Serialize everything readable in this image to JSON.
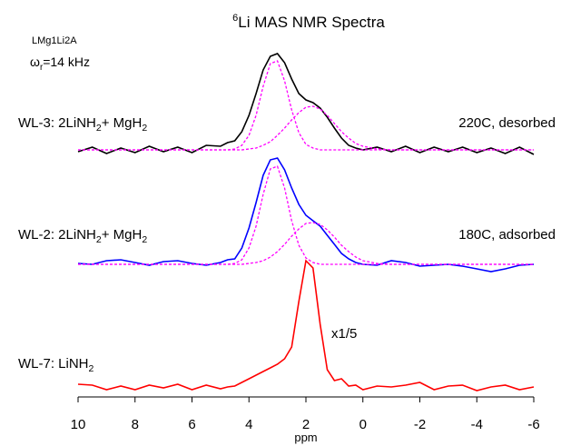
{
  "chart_data": {
    "type": "line",
    "title": "Li MAS NMR Spectra",
    "title_superscript": "6",
    "sample": "LMg1Li2A",
    "spin_rate": [
      "ω",
      "r",
      "=14 kHz"
    ],
    "xlabel": "ppm",
    "xlim": [
      10,
      -6
    ],
    "xticks": [
      10,
      8,
      6,
      4,
      2,
      0,
      -2,
      -4,
      -6
    ],
    "x": [
      10,
      9.5,
      9,
      8.5,
      8,
      7.5,
      7,
      6.5,
      6,
      5.5,
      5,
      4.75,
      4.5,
      4.25,
      4,
      3.75,
      3.5,
      3.25,
      3,
      2.75,
      2.5,
      2.25,
      2,
      1.75,
      1.5,
      1.25,
      1,
      0.75,
      0.5,
      0.25,
      0,
      -0.5,
      -1,
      -1.5,
      -2,
      -2.5,
      -3,
      -3.5,
      -4,
      -4.5,
      -5,
      -5.5,
      -6
    ],
    "series": [
      {
        "name": [
          "WL-3: 2LiNH",
          "2",
          "+ MgH",
          "2"
        ],
        "condition": "220C, desorbed",
        "color": "#000000",
        "values": [
          -2,
          3,
          -4,
          2,
          -3,
          4,
          -2,
          3,
          -3,
          5,
          4,
          8,
          10,
          20,
          38,
          62,
          88,
          103,
          106,
          96,
          78,
          62,
          55,
          52,
          46,
          36,
          24,
          13,
          5,
          2,
          0,
          3,
          -2,
          4,
          -3,
          3,
          -2,
          3,
          -3,
          2,
          -4,
          3,
          -5
        ],
        "fits": [
          {
            "color": "#ff00ff",
            "values": [
              0,
              0,
              0,
              0,
              0,
              0,
              0,
              0,
              0,
              0,
              0,
              0,
              1,
              5,
              16,
              38,
              70,
              95,
              98,
              76,
              44,
              19,
              6,
              2,
              0,
              0,
              0,
              0,
              0,
              0,
              0,
              0,
              0,
              0,
              0,
              0,
              0,
              0,
              0,
              0,
              0,
              0,
              0
            ]
          },
          {
            "color": "#ff00ff",
            "values": [
              0,
              0,
              0,
              0,
              0,
              0,
              0,
              0,
              0,
              0,
              0,
              0,
              0,
              0,
              1,
              2,
              5,
              9,
              16,
              24,
              33,
              41,
              47,
              48,
              45,
              38,
              29,
              20,
              13,
              7,
              4,
              1,
              0,
              0,
              0,
              0,
              0,
              0,
              0,
              0,
              0,
              0,
              0
            ]
          }
        ]
      },
      {
        "name": [
          "WL-2: 2LiNH",
          "2",
          "+ MgH",
          "2"
        ],
        "condition": "180C, adsorbed",
        "color": "#0000ff",
        "values": [
          1,
          0,
          4,
          5,
          2,
          -1,
          3,
          4,
          1,
          -1,
          2,
          5,
          6,
          18,
          40,
          68,
          98,
          115,
          117,
          104,
          84,
          66,
          54,
          48,
          42,
          32,
          22,
          12,
          6,
          2,
          0,
          -1,
          4,
          2,
          -2,
          -1,
          0,
          -2,
          -5,
          -8,
          -5,
          -1,
          0
        ],
        "fits": [
          {
            "color": "#ff00ff",
            "values": [
              0,
              0,
              0,
              0,
              0,
              0,
              0,
              0,
              0,
              0,
              0,
              0,
              1,
              5,
              18,
              42,
              77,
              105,
              108,
              84,
              48,
              21,
              7,
              2,
              0,
              0,
              0,
              0,
              0,
              0,
              0,
              0,
              0,
              0,
              0,
              0,
              0,
              0,
              0,
              0,
              0,
              0,
              0
            ]
          },
          {
            "color": "#ff00ff",
            "values": [
              0,
              0,
              0,
              0,
              0,
              0,
              0,
              0,
              0,
              0,
              0,
              0,
              0,
              0,
              1,
              2,
              4,
              8,
              14,
              22,
              31,
              39,
              45,
              46,
              44,
              38,
              30,
              21,
              14,
              8,
              4,
              1,
              0,
              0,
              0,
              0,
              0,
              0,
              0,
              0,
              0,
              0,
              0
            ]
          }
        ]
      },
      {
        "name": [
          "WL-7: LiNH",
          "2"
        ],
        "annotation": "x1/5",
        "color": "#ff0000",
        "values": [
          4,
          3,
          -2,
          2,
          -2,
          3,
          0,
          4,
          -2,
          3,
          -1,
          1,
          2,
          6,
          10,
          14,
          18,
          22,
          26,
          32,
          45,
          95,
          140,
          132,
          70,
          20,
          8,
          10,
          2,
          3,
          -2,
          2,
          1,
          3,
          6,
          -2,
          2,
          3,
          -3,
          1,
          3,
          -2,
          1
        ],
        "fits": []
      }
    ]
  }
}
